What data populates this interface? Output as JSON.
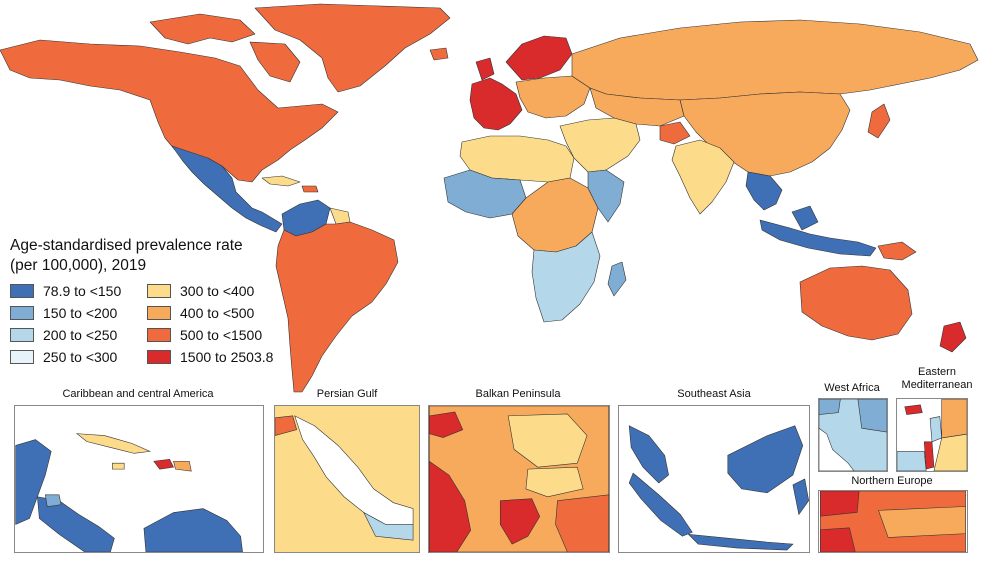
{
  "legend": {
    "title_line1": "Age-standardised prevalence rate",
    "title_line2": "(per 100,000), 2019",
    "classes": [
      {
        "label": "78.9 to <150",
        "color": "#3f6fb5"
      },
      {
        "label": "300 to <400",
        "color": "#fcdb8a"
      },
      {
        "label": "150 to <200",
        "color": "#7fadd3"
      },
      {
        "label": "400 to <500",
        "color": "#f8aa5c"
      },
      {
        "label": "200 to <250",
        "color": "#b5d7ea"
      },
      {
        "label": "500 to <1500",
        "color": "#ef6b3e"
      },
      {
        "label": "250 to <300",
        "color": "#e7f3f8"
      },
      {
        "label": "1500 to 2503.8",
        "color": "#d92b2b"
      }
    ]
  },
  "insets": {
    "caribbean": "Caribbean and central America",
    "persian_gulf": "Persian Gulf",
    "balkan": "Balkan Peninsula",
    "southeast_asia": "Southeast Asia",
    "west_africa": "West Africa",
    "eastern_med_1": "Eastern",
    "eastern_med_2": "Mediterranean",
    "northern_europe": "Northern Europe"
  },
  "colors": {
    "c1": "#3f6fb5",
    "c2": "#7fadd3",
    "c3": "#b5d7ea",
    "c4": "#e7f3f8",
    "c5": "#fcdb8a",
    "c6": "#f8aa5c",
    "c7": "#ef6b3e",
    "c8": "#d92b2b",
    "border": "#333333",
    "frame": "#888888"
  }
}
